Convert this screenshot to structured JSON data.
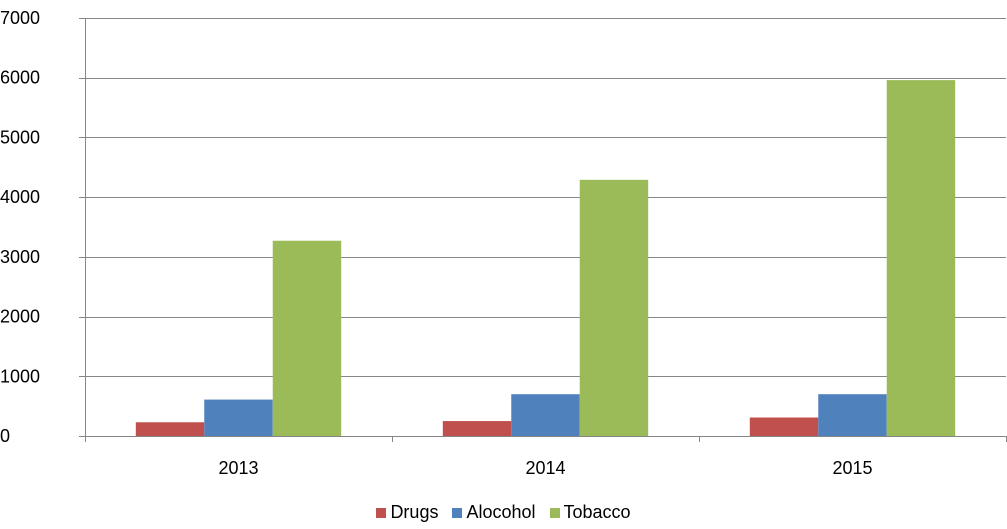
{
  "chart_data": {
    "type": "bar",
    "title": "",
    "xlabel": "",
    "ylabel": "",
    "categories": [
      "2013",
      "2014",
      "2015"
    ],
    "ylim": [
      0,
      7000
    ],
    "yticks": [
      0,
      1000,
      2000,
      3000,
      4000,
      5000,
      6000,
      7000
    ],
    "grid": true,
    "legend_position": "bottom",
    "series": [
      {
        "name": "Drugs",
        "color": "#c0504d",
        "values": [
          230,
          250,
          310
        ]
      },
      {
        "name": "Alocohol",
        "color": "#4f81bd",
        "values": [
          610,
          700,
          700
        ]
      },
      {
        "name": "Tobacco",
        "color": "#9bbb59",
        "values": [
          3270,
          4290,
          5960
        ]
      }
    ]
  }
}
